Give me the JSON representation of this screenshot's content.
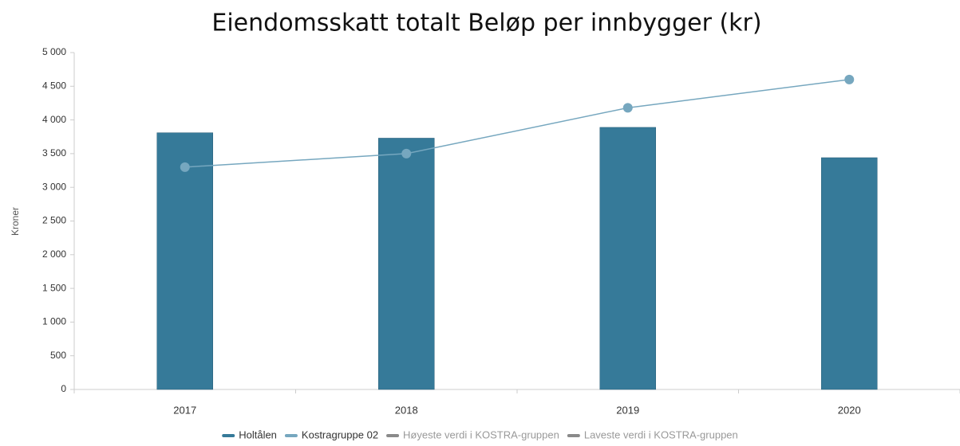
{
  "chart_data": {
    "type": "bar",
    "title": "Eiendomsskatt totalt Beløp per innbygger (kr)",
    "y_label": "Kroner",
    "categories": [
      "2017",
      "2018",
      "2019",
      "2020"
    ],
    "series": [
      {
        "name": "Holtålen",
        "type": "bar",
        "color": "#367a99",
        "values": [
          3810,
          3730,
          3890,
          3440
        ]
      },
      {
        "name": "Kostragruppe 02",
        "type": "line",
        "color": "#76a7bf",
        "values": [
          3300,
          3500,
          4180,
          4600
        ]
      },
      {
        "name": "Høyeste verdi i KOSTRA-gruppen",
        "type": "line",
        "color": "#8a8a8a",
        "hidden": true,
        "values": [
          null,
          null,
          null,
          null
        ]
      },
      {
        "name": "Laveste verdi i KOSTRA-gruppen",
        "type": "line",
        "color": "#8a8a8a",
        "hidden": true,
        "values": [
          null,
          null,
          null,
          null
        ]
      }
    ],
    "ylim": [
      0,
      5000
    ],
    "yticks": [
      0,
      500,
      {
        "value": 1000,
        "label": "1 000"
      },
      {
        "value": 1500,
        "label": "1 500"
      },
      {
        "value": 2000,
        "label": "2 000"
      },
      {
        "value": 2500,
        "label": "2 500"
      },
      {
        "value": 3000,
        "label": "3 000"
      },
      {
        "value": 3500,
        "label": "3 500"
      },
      {
        "value": 4000,
        "label": "4 000"
      },
      {
        "value": 4500,
        "label": "4 500"
      },
      {
        "value": 5000,
        "label": "5 000"
      }
    ],
    "grid": false,
    "legend": "bottom"
  }
}
